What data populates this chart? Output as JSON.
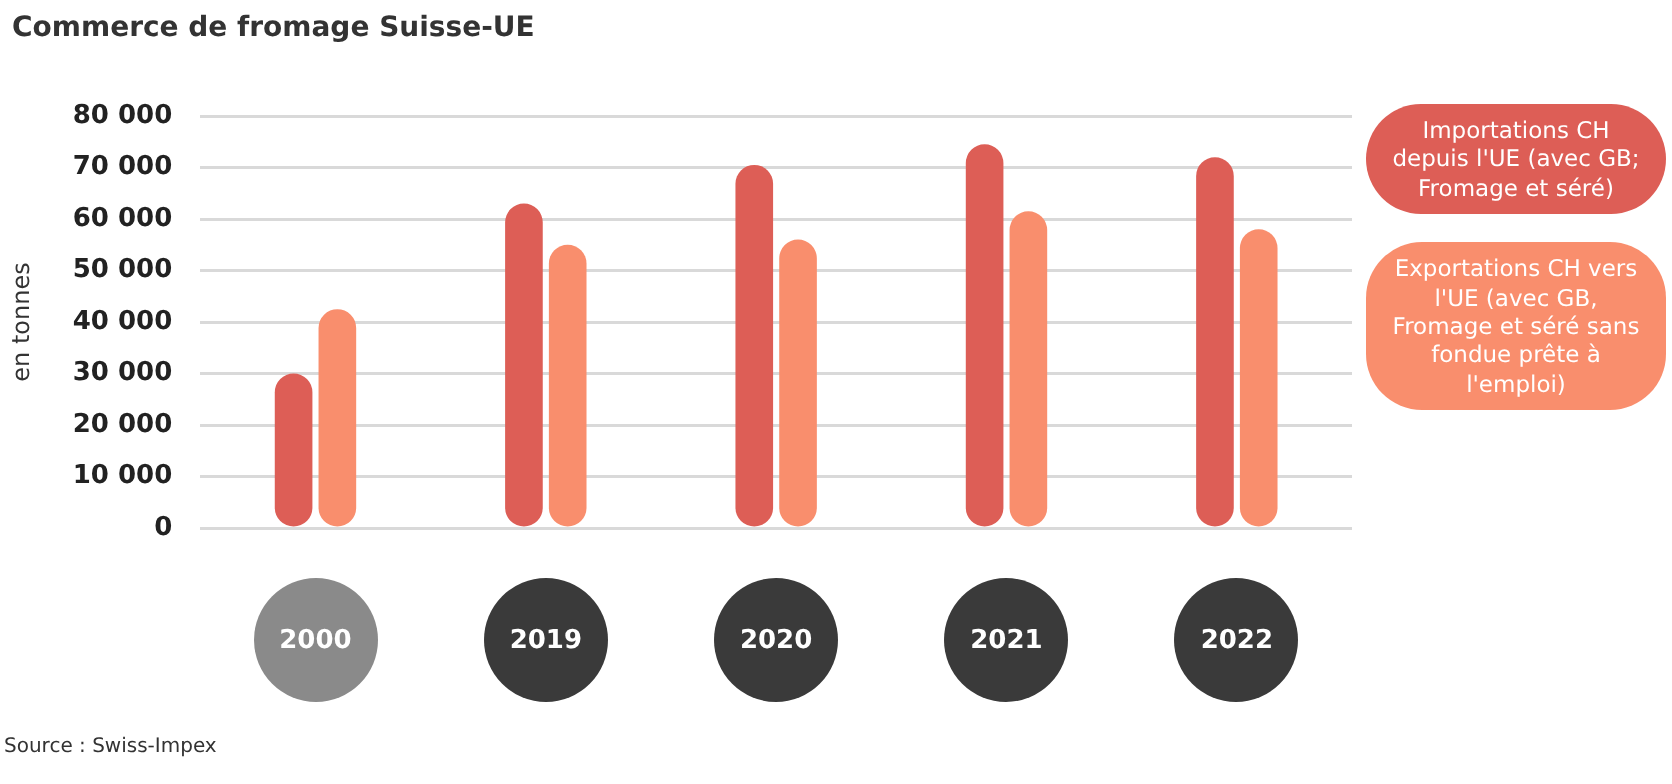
{
  "chart_data": {
    "type": "bar",
    "title": "Commerce de fromage Suisse-UE",
    "ylabel": "en tonnes",
    "categories": [
      "2000",
      "2019",
      "2020",
      "2021",
      "2022"
    ],
    "series": [
      {
        "name": "Importations CH depuis l'UE (avec GB; Fromage et séré)",
        "color": "#dd5e56",
        "values": [
          30000,
          63000,
          70500,
          74500,
          72000
        ]
      },
      {
        "name": "Exportations CH vers l'UE (avec GB, Fromage et séré sans fondue prête à l'emploi)",
        "color": "#f98e6d",
        "values": [
          42500,
          55000,
          56000,
          61500,
          58000
        ]
      }
    ],
    "ylim": [
      0,
      80000
    ],
    "yticks": [
      {
        "value": 0,
        "label": "0"
      },
      {
        "value": 10000,
        "label": "10 000"
      },
      {
        "value": 20000,
        "label": "20 000"
      },
      {
        "value": 30000,
        "label": "30 000"
      },
      {
        "value": 40000,
        "label": "40 000"
      },
      {
        "value": 50000,
        "label": "50 000"
      },
      {
        "value": 60000,
        "label": "60 000"
      },
      {
        "value": 70000,
        "label": "70 000"
      },
      {
        "value": 80000,
        "label": "80 000"
      }
    ],
    "grid": "y",
    "legend": "right",
    "annotations": [
      "Source : Swiss-Impex"
    ]
  }
}
